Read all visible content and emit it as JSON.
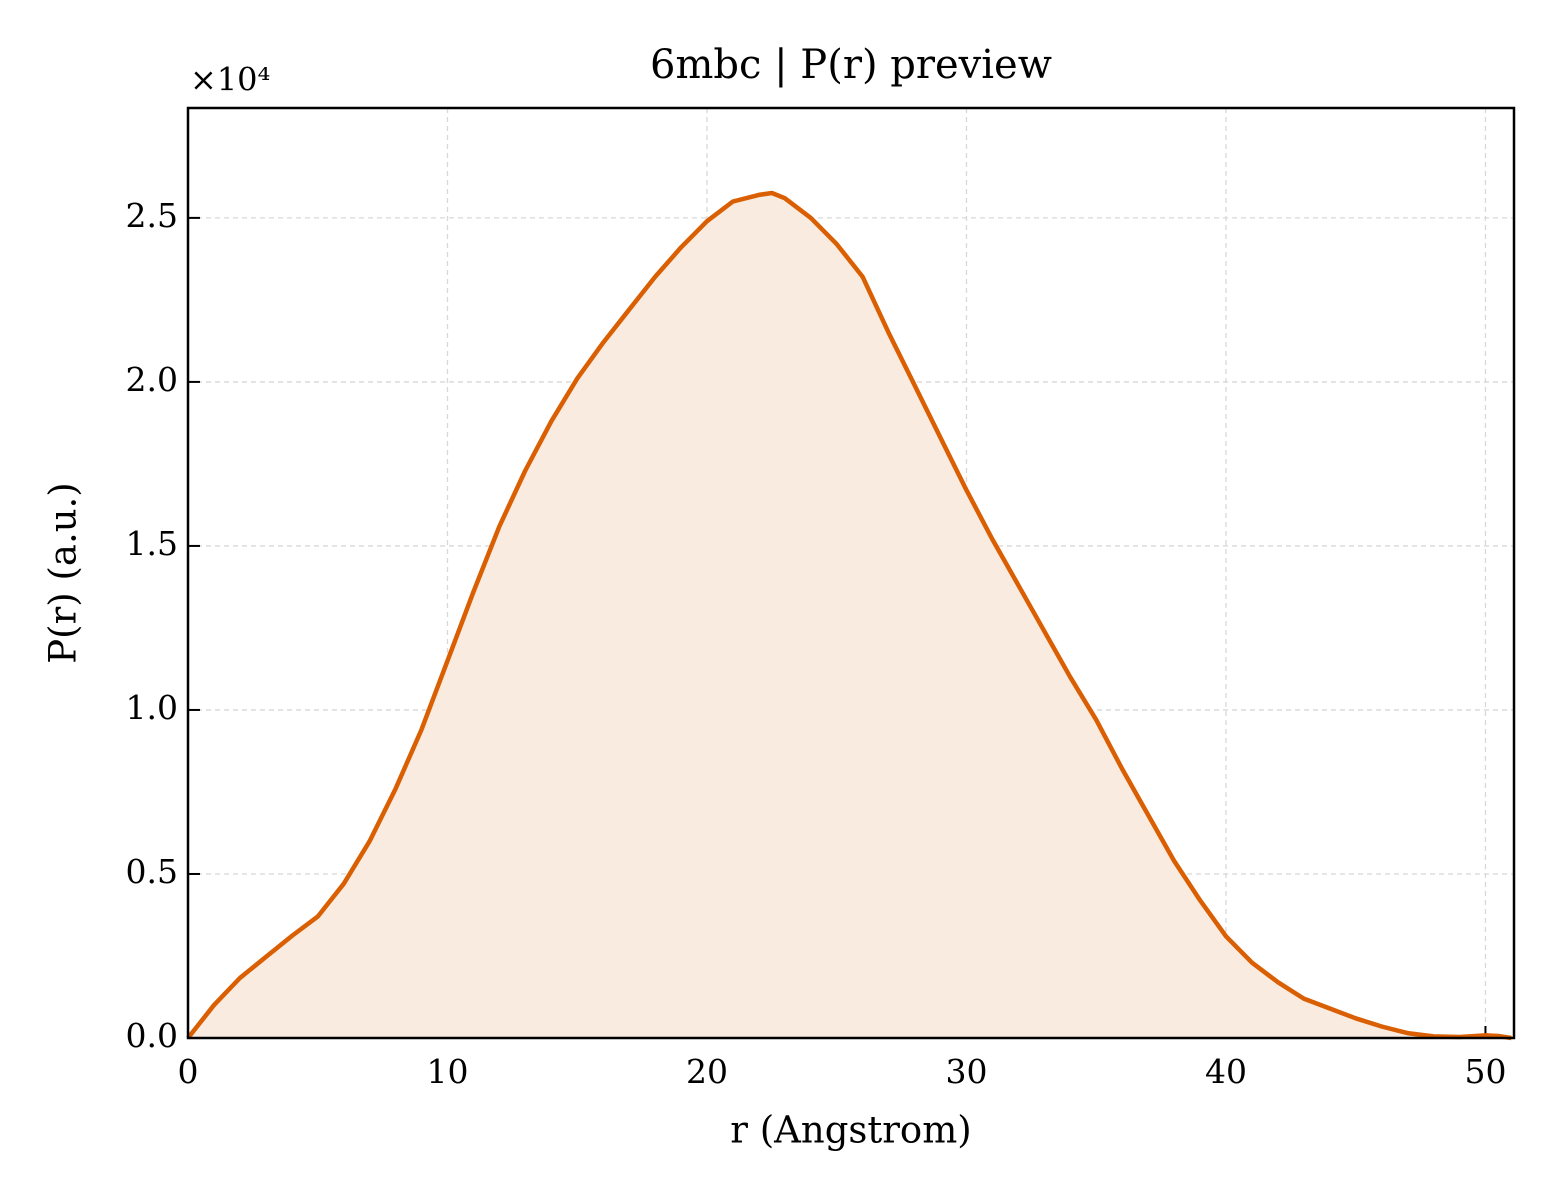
{
  "chart_data": {
    "type": "line",
    "title": "6mbc | P(r) preview",
    "x_label": "r (Angstrom)",
    "y_label": "P(r) (a.u.)",
    "y_offset_label": "×10⁴",
    "x": [
      0,
      1,
      2,
      3,
      4,
      5,
      6,
      7,
      8,
      9,
      10,
      11,
      12,
      13,
      14,
      15,
      16,
      17,
      18,
      19,
      20,
      21,
      22,
      22.5,
      23,
      24,
      25,
      26,
      27,
      28,
      29,
      30,
      31,
      32,
      33,
      34,
      35,
      36,
      37,
      38,
      39,
      40,
      41,
      42,
      43,
      44,
      45,
      46,
      47,
      48,
      49,
      50,
      50.5,
      51
    ],
    "series": [
      {
        "name": "P(r)",
        "color": "#d95f02",
        "fill_color": "#f9ebe0",
        "values": [
          0,
          1000,
          1830,
          2470,
          3110,
          3700,
          4700,
          6000,
          7600,
          9400,
          11500,
          13600,
          15600,
          17300,
          18800,
          20100,
          21200,
          22200,
          23200,
          24100,
          24900,
          25500,
          25700,
          25760,
          25600,
          25000,
          24200,
          23200,
          21500,
          19900,
          18300,
          16700,
          15200,
          13800,
          12400,
          11000,
          9700,
          8200,
          6800,
          5400,
          4200,
          3100,
          2300,
          1700,
          1200,
          900,
          600,
          350,
          150,
          50,
          30,
          80,
          60,
          0
        ]
      }
    ],
    "xlim": [
      0,
      51.1
    ],
    "xticks": [
      0,
      10,
      20,
      30,
      40,
      50
    ],
    "ylim": [
      0,
      28350
    ],
    "yticks": [
      {
        "value": 0,
        "label": "0.0"
      },
      {
        "value": 5000,
        "label": "0.5"
      },
      {
        "value": 10000,
        "label": "1.0"
      },
      {
        "value": 15000,
        "label": "1.5"
      },
      {
        "value": 20000,
        "label": "2.0"
      },
      {
        "value": 25000,
        "label": "2.5"
      }
    ],
    "grid": true
  }
}
